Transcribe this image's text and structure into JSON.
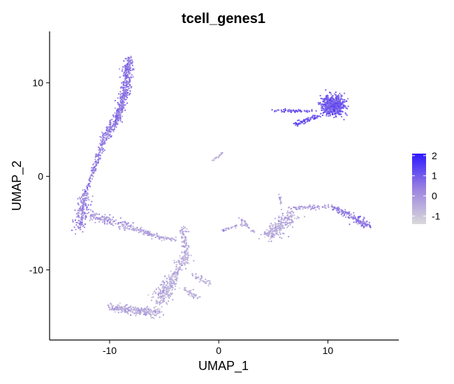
{
  "chart_data": {
    "type": "scatter",
    "title": "tcell_genes1",
    "xlabel": "UMAP_1",
    "ylabel": "UMAP_2",
    "xlim": [
      -15.5,
      16.5
    ],
    "ylim": [
      -17.5,
      15.5
    ],
    "x_ticks": [
      -10,
      0,
      10
    ],
    "y_ticks": [
      -10,
      0,
      10
    ],
    "x_tick_labels": [
      "-10",
      "0",
      "10"
    ],
    "y_tick_labels": [
      "-10",
      "0",
      "10"
    ],
    "grid": false,
    "color_scale": {
      "low": -1.4,
      "high": 2.1,
      "low_color": "#d9d9d9",
      "mid_color": "#9b82e0",
      "high_color": "#2d18ff",
      "breaks": [
        2,
        1,
        0,
        -1
      ],
      "break_labels": [
        "2",
        "1",
        "0",
        "-1"
      ]
    },
    "legend": {
      "placement": "right",
      "title": ""
    },
    "clusters": [
      {
        "x": [
          -8.6,
          -8.2
        ],
        "y": [
          9.0,
          12.5
        ],
        "spread": 0.45,
        "n": 220,
        "score_mean": 0.55,
        "score_sd": 0.35
      },
      {
        "x": [
          -9.2,
          -8.6
        ],
        "y": [
          6.5,
          9.0
        ],
        "spread": 0.4,
        "n": 160,
        "score_mean": 0.5,
        "score_sd": 0.35
      },
      {
        "x": [
          -10.5,
          -9.2
        ],
        "y": [
          4.0,
          6.5
        ],
        "spread": 0.45,
        "n": 150,
        "score_mean": 0.45,
        "score_sd": 0.35
      },
      {
        "x": [
          -11.5,
          -10.5
        ],
        "y": [
          0.5,
          4.0
        ],
        "spread": 0.25,
        "n": 110,
        "score_mean": 0.35,
        "score_sd": 0.35
      },
      {
        "x": [
          -12.3,
          -11.5
        ],
        "y": [
          -2.0,
          0.5
        ],
        "spread": 0.2,
        "n": 45,
        "score_mean": 0.25,
        "score_sd": 0.35
      },
      {
        "x": [
          -12.8,
          -12.3
        ],
        "y": [
          -5.5,
          -2.0
        ],
        "spread": 0.55,
        "n": 170,
        "score_mean": 0.2,
        "score_sd": 0.4
      },
      {
        "x": [
          -12.0,
          -8.0
        ],
        "y": [
          -4.0,
          -5.5
        ],
        "spread": 0.45,
        "n": 150,
        "score_mean": -0.2,
        "score_sd": 0.4
      },
      {
        "x": [
          -8.0,
          -5.5
        ],
        "y": [
          -5.5,
          -6.5
        ],
        "spread": 0.3,
        "n": 90,
        "score_mean": -0.4,
        "score_sd": 0.35
      },
      {
        "x": [
          -5.5,
          -4.0
        ],
        "y": [
          -6.5,
          -6.8
        ],
        "spread": 0.2,
        "n": 40,
        "score_mean": -0.5,
        "score_sd": 0.3
      },
      {
        "x": [
          -3.3,
          -3.0
        ],
        "y": [
          -5.5,
          -8.5
        ],
        "spread": 0.35,
        "n": 80,
        "score_mean": -0.5,
        "score_sd": 0.35
      },
      {
        "x": [
          -3.0,
          -4.5
        ],
        "y": [
          -8.5,
          -11.5
        ],
        "spread": 0.55,
        "n": 150,
        "score_mean": -0.55,
        "score_sd": 0.35
      },
      {
        "x": [
          -4.5,
          -5.5
        ],
        "y": [
          -11.5,
          -13.5
        ],
        "spread": 0.75,
        "n": 170,
        "score_mean": -0.55,
        "score_sd": 0.35
      },
      {
        "x": [
          -10.0,
          -5.5
        ],
        "y": [
          -14.0,
          -14.6
        ],
        "spread": 0.45,
        "n": 260,
        "score_mean": -0.55,
        "score_sd": 0.35
      },
      {
        "x": [
          -3.2,
          -2.0
        ],
        "y": [
          -12.0,
          -13.0
        ],
        "spread": 0.35,
        "n": 40,
        "score_mean": -0.55,
        "score_sd": 0.3
      },
      {
        "x": [
          -2.5,
          -0.8
        ],
        "y": [
          -10.5,
          -11.5
        ],
        "spread": 0.3,
        "n": 40,
        "score_mean": -0.6,
        "score_sd": 0.3
      },
      {
        "x": [
          -0.5,
          0.3
        ],
        "y": [
          1.7,
          2.5
        ],
        "spread": 0.08,
        "n": 25,
        "score_mean": -0.6,
        "score_sd": 0.3
      },
      {
        "x": [
          10.5,
          10.5
        ],
        "y": [
          7.6,
          7.6
        ],
        "spread": 1.05,
        "n": 650,
        "score_mean": 1.0,
        "score_sd": 0.35
      },
      {
        "x": [
          5.0,
          8.5
        ],
        "y": [
          7.0,
          7.0
        ],
        "spread": 0.18,
        "n": 70,
        "score_mean": 0.9,
        "score_sd": 0.35
      },
      {
        "x": [
          7.0,
          9.2
        ],
        "y": [
          5.6,
          6.4
        ],
        "spread": 0.25,
        "n": 70,
        "score_mean": 1.2,
        "score_sd": 0.3
      },
      {
        "x": [
          0.3,
          2.3
        ],
        "y": [
          -5.8,
          -5.1
        ],
        "spread": 0.15,
        "n": 30,
        "score_mean": -0.3,
        "score_sd": 0.35
      },
      {
        "x": [
          2.0,
          3.2
        ],
        "y": [
          -4.5,
          -6.0
        ],
        "spread": 0.15,
        "n": 30,
        "score_mean": -0.3,
        "score_sd": 0.35
      },
      {
        "x": [
          5.5,
          5.8
        ],
        "y": [
          -2.0,
          -3.5
        ],
        "spread": 0.1,
        "n": 12,
        "score_mean": -0.3,
        "score_sd": 0.3
      },
      {
        "x": [
          4.5,
          6.8
        ],
        "y": [
          -6.5,
          -4.0
        ],
        "spread": 0.7,
        "n": 230,
        "score_mean": -0.45,
        "score_sd": 0.35
      },
      {
        "x": [
          6.5,
          10.5
        ],
        "y": [
          -3.4,
          -3.2
        ],
        "spread": 0.2,
        "n": 70,
        "score_mean": -0.2,
        "score_sd": 0.35
      },
      {
        "x": [
          10.5,
          12.5
        ],
        "y": [
          -3.3,
          -4.5
        ],
        "spread": 0.3,
        "n": 70,
        "score_mean": 0.45,
        "score_sd": 0.35
      },
      {
        "x": [
          12.5,
          13.8
        ],
        "y": [
          -4.5,
          -5.2
        ],
        "spread": 0.45,
        "n": 90,
        "score_mean": 0.5,
        "score_sd": 0.35
      }
    ]
  }
}
